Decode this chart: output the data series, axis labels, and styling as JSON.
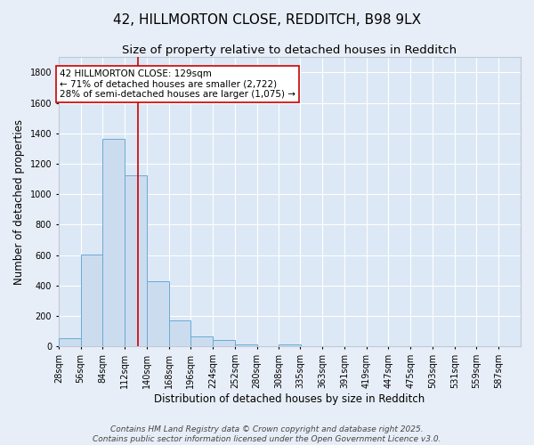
{
  "title": "42, HILLMORTON CLOSE, REDDITCH, B98 9LX",
  "subtitle": "Size of property relative to detached houses in Redditch",
  "xlabel": "Distribution of detached houses by size in Redditch",
  "ylabel": "Number of detached properties",
  "bin_labels": [
    "28sqm",
    "56sqm",
    "84sqm",
    "112sqm",
    "140sqm",
    "168sqm",
    "196sqm",
    "224sqm",
    "252sqm",
    "280sqm",
    "308sqm",
    "335sqm",
    "363sqm",
    "391sqm",
    "419sqm",
    "447sqm",
    "475sqm",
    "503sqm",
    "531sqm",
    "559sqm",
    "587sqm"
  ],
  "bin_edges": [
    28,
    56,
    84,
    112,
    140,
    168,
    196,
    224,
    252,
    280,
    308,
    335,
    363,
    391,
    419,
    447,
    475,
    503,
    531,
    559,
    587
  ],
  "bar_heights": [
    56,
    605,
    1365,
    1125,
    430,
    170,
    65,
    40,
    15,
    0,
    15,
    0,
    0,
    0,
    0,
    0,
    0,
    0,
    0,
    0
  ],
  "bar_color": "#ccdcef",
  "bar_edge_color": "#6aaad4",
  "property_size": 129,
  "vline_color": "#cc0000",
  "annotation_line1": "42 HILLMORTON CLOSE: 129sqm",
  "annotation_line2": "← 71% of detached houses are smaller (2,722)",
  "annotation_line3": "28% of semi-detached houses are larger (1,075) →",
  "annotation_box_color": "#ffffff",
  "annotation_box_edge": "#cc0000",
  "ylim": [
    0,
    1900
  ],
  "yticks": [
    0,
    200,
    400,
    600,
    800,
    1000,
    1200,
    1400,
    1600,
    1800
  ],
  "background_color": "#e8eef7",
  "plot_bg_color": "#dce8f5",
  "grid_color": "#ffffff",
  "footer_line1": "Contains HM Land Registry data © Crown copyright and database right 2025.",
  "footer_line2": "Contains public sector information licensed under the Open Government Licence v3.0.",
  "title_fontsize": 11,
  "subtitle_fontsize": 9.5,
  "axis_label_fontsize": 8.5,
  "tick_fontsize": 7,
  "footer_fontsize": 6.5,
  "annotation_fontsize": 7.5
}
